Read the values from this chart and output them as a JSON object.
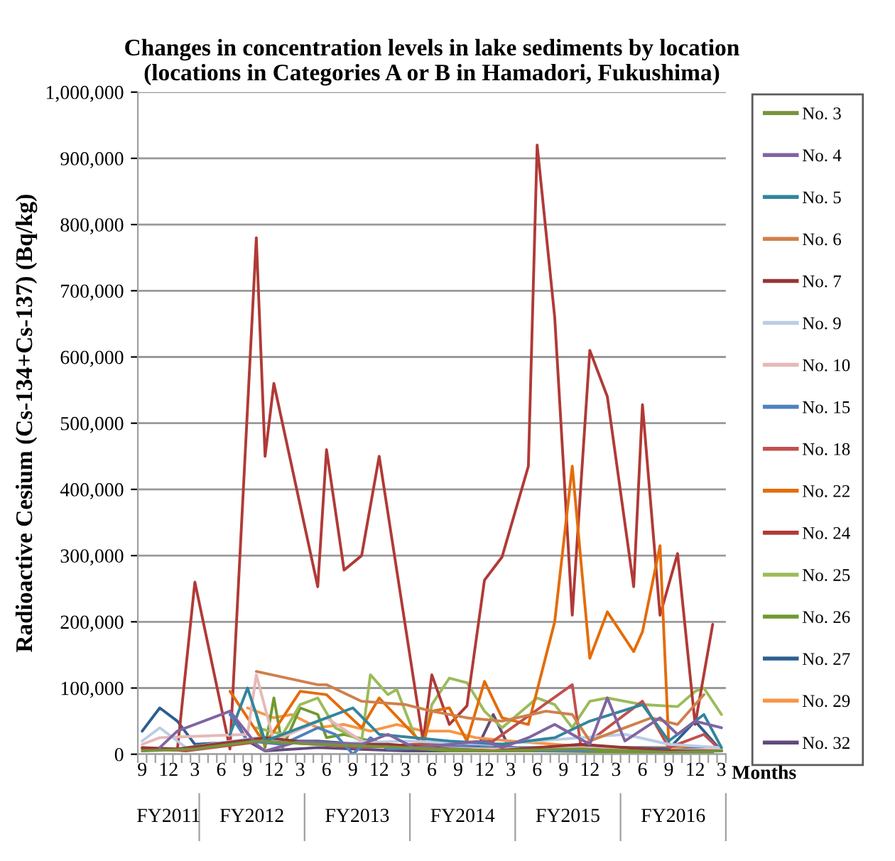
{
  "chart_data": {
    "type": "line",
    "title": "Changes in concentration levels in lake sediments by location\n(locations in Categories A or B in Hamadori, Fukushima)",
    "xlabel": "Months",
    "ylabel": "Radioactive Cesium (Cs-134+Cs-137) (Bq/kg)",
    "annotations": [
      "FY2011",
      "FY2012",
      "FY2013",
      "FY2014",
      "FY2015",
      "FY2016"
    ],
    "categories": [
      "9",
      null,
      null,
      "12",
      null,
      null,
      "3",
      null,
      null,
      "6",
      null,
      null,
      "9",
      null,
      null,
      "12",
      null,
      null,
      "3",
      null,
      null,
      "6",
      null,
      null,
      "9",
      null,
      null,
      "12",
      null,
      null,
      "3",
      null,
      null,
      "6",
      null,
      null,
      "9",
      null,
      null,
      "12",
      null,
      null,
      "3",
      null,
      null,
      "6",
      null,
      null,
      "9",
      null,
      null,
      "12",
      null,
      null,
      "3",
      null,
      null,
      "6",
      null,
      null,
      "9",
      null,
      null,
      "12",
      null,
      null,
      "3"
    ],
    "ylim": [
      0,
      1000000
    ],
    "yticks": [
      0,
      {
        "value": 100000,
        "label": "100,000"
      },
      {
        "value": 200000,
        "label": "200,000"
      },
      {
        "value": 300000,
        "label": "300,000"
      },
      {
        "value": 400000,
        "label": "400,000"
      },
      {
        "value": 500000,
        "label": "500,000"
      },
      {
        "value": 600000,
        "label": "600,000"
      },
      {
        "value": 700000,
        "label": "700,000"
      },
      {
        "value": 800000,
        "label": "800,000"
      },
      {
        "value": 900000,
        "label": "900,000"
      },
      {
        "value": 1000000,
        "label": "1,000,000"
      }
    ],
    "grid": "y",
    "legend": "right",
    "marker": "none",
    "line_style": "solid",
    "series": [
      {
        "name": "No. 3",
        "color": "#77933c",
        "values": [
          5000,
          null,
          null,
          null,
          null,
          null,
          8000,
          null,
          null,
          null,
          null,
          null,
          null,
          20000,
          null,
          null,
          null,
          null,
          null,
          null,
          15000,
          null,
          null,
          null,
          null,
          null,
          null,
          null,
          null,
          null,
          10000,
          null,
          null,
          null,
          null,
          null,
          null,
          null,
          null,
          null,
          5000,
          null,
          null,
          null,
          null,
          null,
          null,
          null,
          null,
          null,
          8000,
          null,
          null,
          null,
          null,
          null,
          null,
          null,
          null,
          null,
          3000,
          null,
          null,
          null,
          null,
          null,
          5000
        ]
      },
      {
        "name": "No. 4",
        "color": "#8064a2",
        "values": [
          null,
          null,
          10000,
          null,
          35000,
          null,
          null,
          null,
          null,
          null,
          65000,
          null,
          null,
          15000,
          5000,
          null,
          null,
          null,
          20000,
          null,
          null,
          null,
          null,
          null,
          null,
          15000,
          null,
          null,
          30000,
          null,
          null,
          10000,
          null,
          null,
          null,
          null,
          null,
          null,
          null,
          20000,
          null,
          10000,
          null,
          null,
          25000,
          null,
          null,
          45000,
          null,
          null,
          null,
          15000,
          null,
          85000,
          null,
          20000,
          null,
          null,
          null,
          55000,
          null,
          30000,
          null,
          50000,
          null,
          null,
          40000
        ]
      },
      {
        "name": "No. 5",
        "color": "#31859c",
        "values": [
          null,
          null,
          null,
          null,
          null,
          null,
          null,
          null,
          null,
          null,
          30000,
          null,
          100000,
          null,
          20000,
          null,
          null,
          null,
          null,
          null,
          50000,
          null,
          null,
          null,
          70000,
          null,
          null,
          30000,
          null,
          null,
          null,
          null,
          null,
          null,
          null,
          20000,
          null,
          null,
          null,
          null,
          null,
          15000,
          null,
          null,
          null,
          null,
          null,
          25000,
          null,
          null,
          null,
          50000,
          null,
          null,
          null,
          null,
          null,
          75000,
          null,
          null,
          20000,
          null,
          null,
          null,
          60000,
          null,
          10000
        ]
      },
      {
        "name": "No. 6",
        "color": "#d0804a",
        "values": [
          null,
          null,
          null,
          null,
          null,
          null,
          null,
          null,
          null,
          null,
          null,
          null,
          null,
          125000,
          null,
          null,
          null,
          null,
          null,
          null,
          105000,
          105000,
          null,
          null,
          null,
          80000,
          null,
          null,
          null,
          null,
          75000,
          null,
          null,
          65000,
          null,
          null,
          null,
          55000,
          null,
          null,
          null,
          50000,
          null,
          null,
          null,
          null,
          65000,
          null,
          null,
          60000,
          null,
          20000,
          null,
          null,
          null,
          40000,
          null,
          null,
          55000,
          null,
          null,
          45000,
          null,
          null,
          90000,
          null,
          null
        ]
      },
      {
        "name": "No. 7",
        "color": "#953735",
        "values": [
          10000,
          null,
          null,
          null,
          8000,
          null,
          null,
          null,
          null,
          null,
          null,
          null,
          null,
          null,
          25000,
          null,
          null,
          null,
          null,
          null,
          null,
          15000,
          null,
          null,
          null,
          null,
          null,
          null,
          15000,
          null,
          null,
          null,
          null,
          null,
          null,
          8000,
          null,
          null,
          null,
          null,
          5000,
          null,
          null,
          null,
          null,
          null,
          null,
          null,
          null,
          null,
          15000,
          null,
          null,
          null,
          null,
          null,
          null,
          null,
          null,
          null,
          5000,
          null,
          null,
          null,
          null,
          null,
          5000
        ]
      },
      {
        "name": "No. 9",
        "color": "#b9cde5",
        "values": [
          20000,
          null,
          40000,
          null,
          null,
          10000,
          null,
          null,
          null,
          null,
          null,
          null,
          null,
          25000,
          null,
          null,
          null,
          null,
          null,
          null,
          15000,
          null,
          null,
          null,
          null,
          null,
          null,
          null,
          null,
          null,
          20000,
          null,
          null,
          null,
          null,
          null,
          null,
          null,
          null,
          null,
          15000,
          null,
          null,
          null,
          null,
          20000,
          null,
          null,
          null,
          null,
          null,
          null,
          null,
          null,
          null,
          30000,
          null,
          null,
          null,
          null,
          15000,
          null,
          null,
          null,
          null,
          null,
          10000
        ]
      },
      {
        "name": "No. 10",
        "color": "#e6b9b8",
        "values": [
          15000,
          null,
          25000,
          null,
          null,
          null,
          null,
          null,
          null,
          null,
          null,
          null,
          30000,
          120000,
          null,
          20000,
          null,
          null,
          null,
          null,
          null,
          55000,
          null,
          null,
          null,
          20000,
          null,
          null,
          null,
          null,
          10000,
          null,
          null,
          null,
          null,
          null,
          null,
          null,
          null,
          null,
          8000,
          null,
          null,
          null,
          null,
          null,
          null,
          null,
          null,
          null,
          10000,
          null,
          null,
          null,
          null,
          null,
          null,
          null,
          null,
          null,
          5000,
          null,
          null,
          null,
          null,
          null,
          8000
        ]
      },
      {
        "name": "No. 15",
        "color": "#4f81bd",
        "values": [
          null,
          null,
          null,
          null,
          null,
          null,
          null,
          null,
          null,
          null,
          60000,
          null,
          20000,
          null,
          null,
          null,
          15000,
          null,
          null,
          null,
          40000,
          null,
          30000,
          null,
          0,
          null,
          25000,
          null,
          8000,
          null,
          null,
          null,
          null,
          10000,
          null,
          null,
          null,
          null,
          null,
          null,
          15000,
          null,
          null,
          null,
          null,
          5000,
          null,
          null,
          null,
          null,
          5000,
          null,
          null,
          null,
          null,
          10000,
          null,
          null,
          null,
          null,
          5000,
          null,
          null,
          null,
          10000,
          null,
          null
        ]
      },
      {
        "name": "No. 18",
        "color": "#c0504d",
        "values": [
          10000,
          null,
          null,
          null,
          null,
          5000,
          null,
          null,
          null,
          null,
          null,
          null,
          null,
          null,
          20000,
          null,
          null,
          null,
          null,
          null,
          null,
          null,
          null,
          null,
          null,
          10000,
          null,
          null,
          null,
          null,
          null,
          15000,
          null,
          null,
          null,
          null,
          null,
          null,
          null,
          null,
          20000,
          null,
          null,
          null,
          null,
          null,
          null,
          null,
          null,
          105000,
          10000,
          null,
          null,
          null,
          null,
          null,
          null,
          80000,
          null,
          null,
          10000,
          null,
          null,
          null,
          30000,
          null,
          5000
        ]
      },
      {
        "name": "No. 22",
        "color": "#e46c0a",
        "values": [
          null,
          null,
          null,
          null,
          null,
          null,
          null,
          null,
          null,
          null,
          95000,
          null,
          null,
          null,
          15000,
          null,
          null,
          null,
          95000,
          null,
          null,
          90000,
          null,
          null,
          null,
          40000,
          null,
          85000,
          null,
          null,
          null,
          null,
          15000,
          65000,
          null,
          70000,
          null,
          20000,
          null,
          110000,
          null,
          55000,
          null,
          null,
          45000,
          null,
          null,
          200000,
          null,
          435000,
          null,
          145000,
          null,
          215000,
          null,
          null,
          155000,
          185000,
          null,
          315000,
          15000,
          null,
          null,
          10000,
          null,
          null,
          8000
        ]
      },
      {
        "name": "No. 24",
        "color": "#b03a37",
        "values": [
          8000,
          null,
          null,
          null,
          6000,
          null,
          260000,
          null,
          null,
          null,
          8000,
          null,
          null,
          780000,
          450000,
          560000,
          null,
          null,
          null,
          null,
          253000,
          460000,
          null,
          278000,
          null,
          300000,
          null,
          450000,
          null,
          null,
          null,
          null,
          20000,
          120000,
          null,
          45000,
          null,
          73000,
          null,
          263000,
          null,
          298000,
          null,
          null,
          435000,
          920000,
          null,
          660000,
          null,
          210000,
          null,
          610000,
          null,
          540000,
          null,
          null,
          253000,
          528000,
          null,
          210000,
          null,
          303000,
          null,
          45000,
          null,
          196000,
          null
        ]
      },
      {
        "name": "No. 25",
        "color": "#9bbb59",
        "values": [
          null,
          null,
          null,
          null,
          null,
          null,
          null,
          null,
          null,
          null,
          null,
          null,
          null,
          40000,
          null,
          null,
          30000,
          null,
          75000,
          null,
          85000,
          null,
          40000,
          null,
          null,
          20000,
          120000,
          null,
          90000,
          98000,
          null,
          30000,
          10000,
          75000,
          null,
          115000,
          null,
          108000,
          null,
          65000,
          null,
          40000,
          null,
          null,
          null,
          85000,
          null,
          75000,
          null,
          40000,
          null,
          80000,
          null,
          85000,
          null,
          null,
          null,
          75000,
          null,
          null,
          null,
          72000,
          null,
          95000,
          100000,
          null,
          60000
        ]
      },
      {
        "name": "No. 26",
        "color": "#6f9a2e",
        "values": [
          null,
          null,
          null,
          null,
          null,
          null,
          null,
          null,
          null,
          null,
          null,
          null,
          null,
          60000,
          10000,
          85000,
          10000,
          null,
          70000,
          null,
          60000,
          25000,
          null,
          30000,
          null,
          null,
          20000,
          null,
          null,
          null,
          10000,
          null,
          null,
          null,
          null,
          5000,
          null,
          null,
          null,
          null,
          null,
          null,
          null,
          null,
          null,
          5000,
          null,
          null,
          null,
          null,
          null,
          null,
          null,
          null,
          null,
          3000,
          null,
          null,
          null,
          null,
          null,
          null,
          null,
          null,
          null,
          3000,
          null
        ]
      },
      {
        "name": "No. 27",
        "color": "#2c5f8f",
        "values": [
          35000,
          null,
          70000,
          null,
          50000,
          null,
          15000,
          null,
          null,
          null,
          18000,
          null,
          null,
          20000,
          null,
          null,
          null,
          null,
          null,
          null,
          20000,
          null,
          null,
          null,
          null,
          15000,
          null,
          null,
          null,
          null,
          8000,
          null,
          null,
          null,
          null,
          10000,
          null,
          null,
          null,
          null,
          10000,
          null,
          null,
          null,
          null,
          10000,
          null,
          null,
          null,
          null,
          12000,
          null,
          null,
          null,
          null,
          10000,
          null,
          null,
          null,
          null,
          8000,
          null,
          null,
          50000,
          null,
          null,
          5000
        ]
      },
      {
        "name": "No. 29",
        "color": "#f79646",
        "values": [
          null,
          null,
          null,
          null,
          null,
          null,
          null,
          null,
          null,
          null,
          null,
          null,
          70000,
          null,
          null,
          55000,
          null,
          60000,
          null,
          null,
          40000,
          null,
          null,
          45000,
          null,
          null,
          35000,
          null,
          null,
          45000,
          null,
          null,
          35000,
          null,
          null,
          35000,
          null,
          null,
          25000,
          null,
          null,
          null,
          20000,
          null,
          null,
          null,
          null,
          15000,
          null,
          null,
          null,
          null,
          10000,
          null,
          null,
          null,
          null,
          10000,
          null,
          null,
          null,
          null,
          8000,
          null,
          null,
          null,
          10000
        ]
      },
      {
        "name": "No. 32",
        "color": "#604a7b",
        "values": [
          null,
          null,
          null,
          null,
          null,
          null,
          null,
          null,
          null,
          null,
          65000,
          null,
          20000,
          null,
          5000,
          null,
          null,
          null,
          null,
          null,
          10000,
          null,
          null,
          null,
          null,
          null,
          null,
          null,
          null,
          null,
          5000,
          null,
          null,
          null,
          null,
          null,
          null,
          null,
          5000,
          null,
          60000,
          null,
          5000,
          null,
          null,
          null,
          null,
          null,
          null,
          null,
          10000,
          null,
          null,
          null,
          null,
          null,
          null,
          null,
          null,
          null,
          10000,
          null,
          null,
          null,
          null,
          null,
          5000
        ]
      }
    ]
  }
}
